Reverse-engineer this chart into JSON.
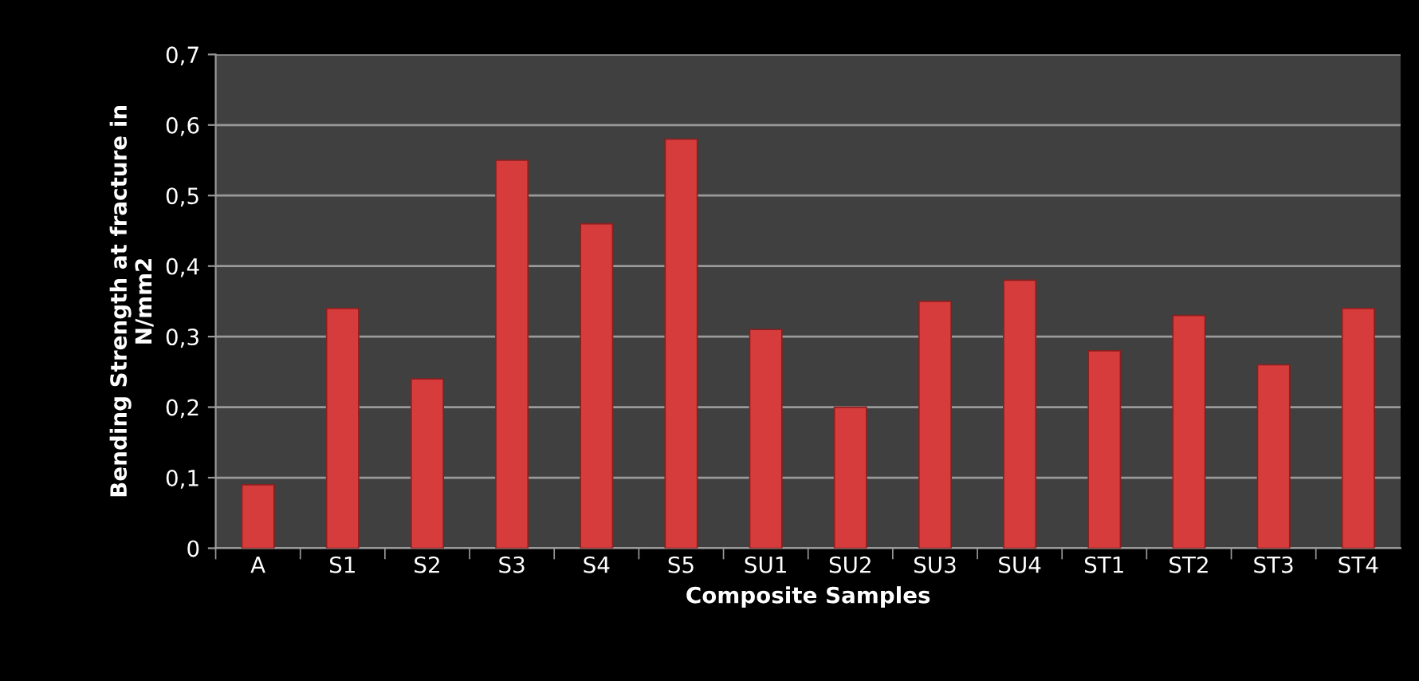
{
  "chart_data": {
    "type": "bar",
    "xlabel": "Composite Samples",
    "ylabel": "Bending Strength at fracture in\nN/mm2",
    "categories": [
      "A",
      "S1",
      "S2",
      "S3",
      "S4",
      "S5",
      "SU1",
      "SU2",
      "SU3",
      "SU4",
      "ST1",
      "ST2",
      "ST3",
      "ST4"
    ],
    "values": [
      0.09,
      0.34,
      0.24,
      0.55,
      0.46,
      0.58,
      0.31,
      0.2,
      0.35,
      0.38,
      0.28,
      0.33,
      0.26,
      0.34
    ],
    "color": "#d63c3c",
    "ylim": [
      0,
      0.7
    ],
    "yticks": [
      0,
      {
        "value": 0.1,
        "label": "0,1"
      },
      {
        "value": 0.2,
        "label": "0,2"
      },
      {
        "value": 0.3,
        "label": "0,3"
      },
      {
        "value": 0.4,
        "label": "0,4"
      },
      {
        "value": 0.5,
        "label": "0,5"
      },
      {
        "value": 0.6,
        "label": "0,6"
      },
      {
        "value": 0.7,
        "label": "0,7"
      }
    ],
    "grid": "y"
  }
}
